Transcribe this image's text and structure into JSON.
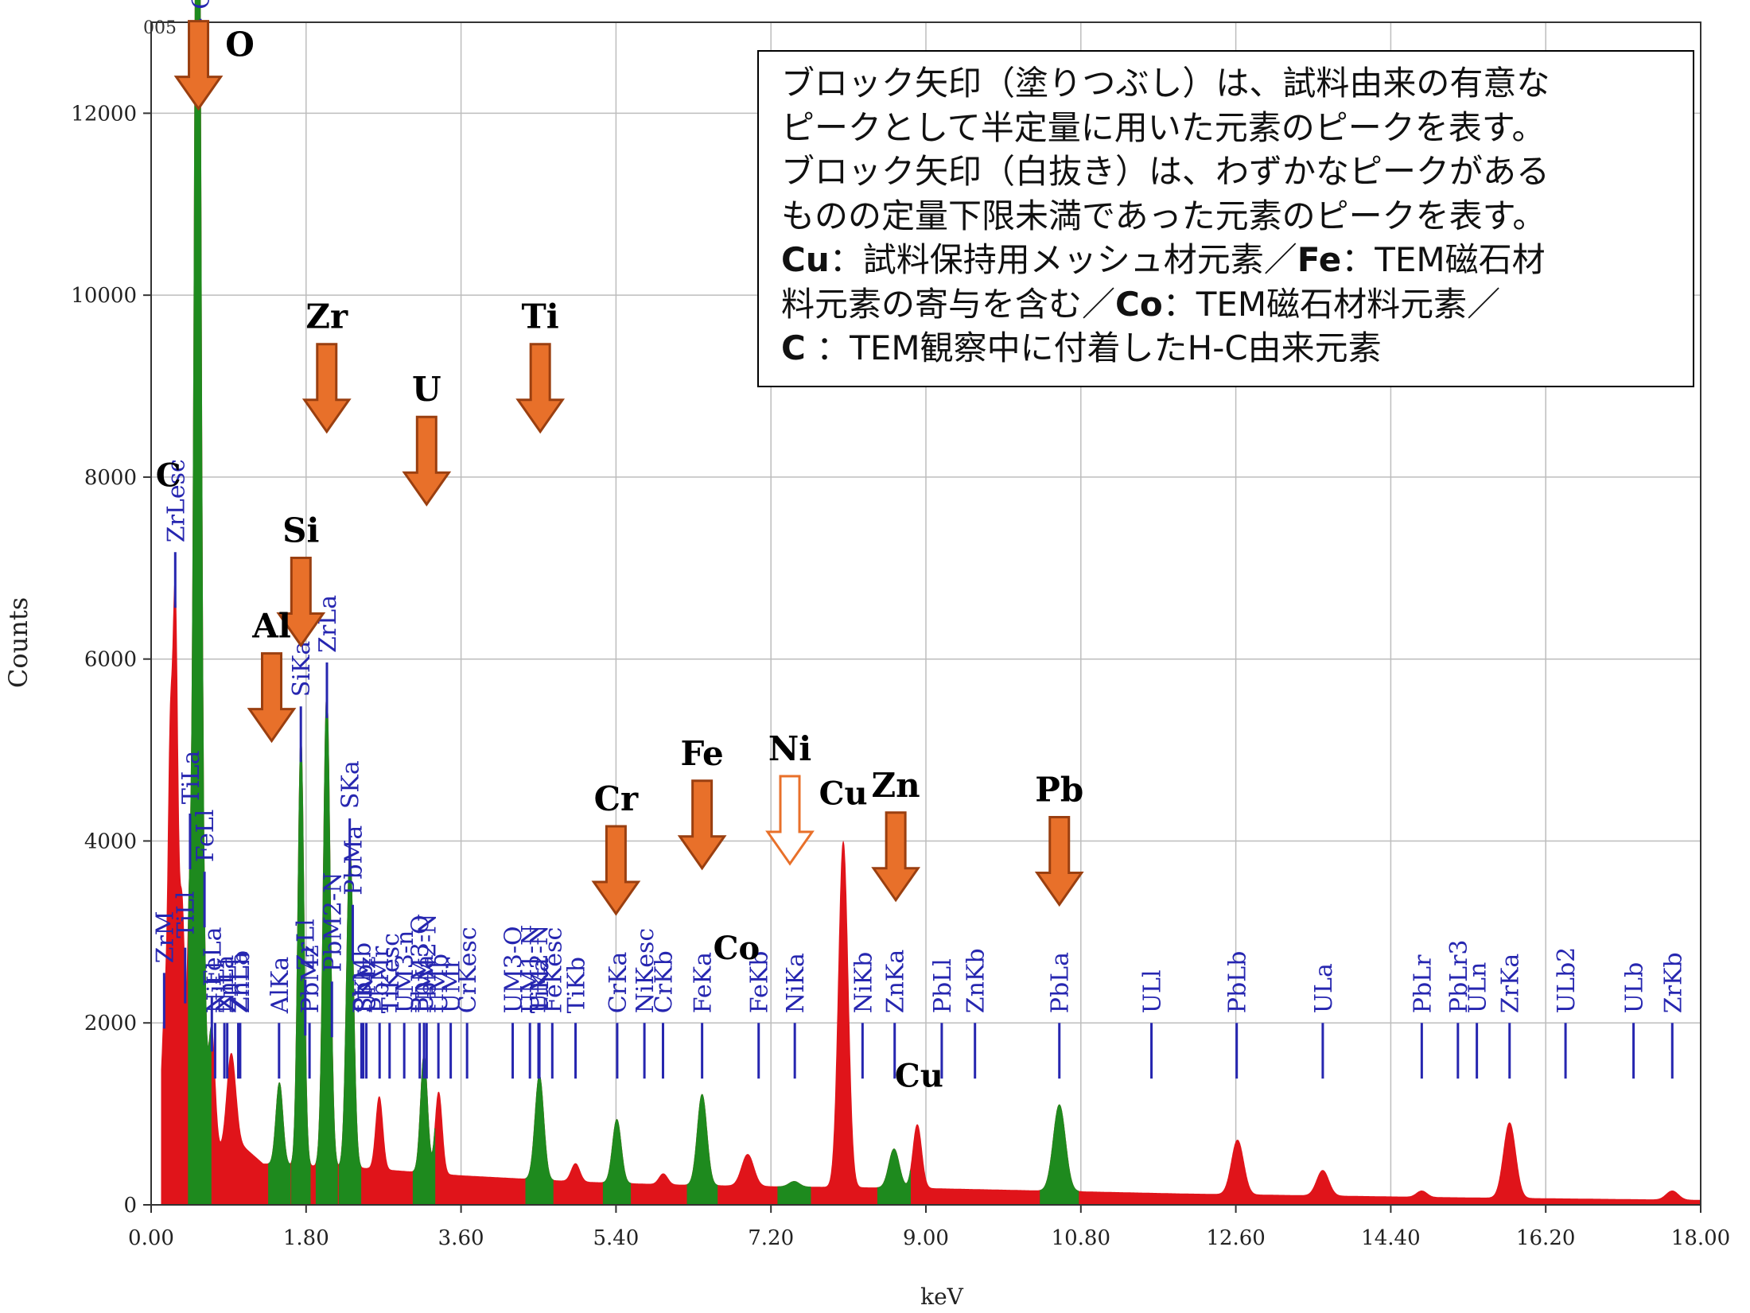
{
  "chart_data": {
    "type": "area",
    "corner_label": "005",
    "xlabel": "keV",
    "ylabel": "Counts",
    "xlim": [
      0,
      18
    ],
    "ylim": [
      0,
      13000
    ],
    "x_ticks": [
      "0.00",
      "1.80",
      "3.60",
      "5.40",
      "7.20",
      "9.00",
      "10.80",
      "12.60",
      "14.40",
      "16.20",
      "18.00"
    ],
    "y_ticks": [
      "0",
      "2000",
      "4000",
      "6000",
      "8000",
      "10000",
      "12000"
    ],
    "grid": true,
    "colors": {
      "spectrum": "#e0141a",
      "identified": "#1e8a1e",
      "arrow": "#e8702a",
      "arrow_stroke": "#9a3f10",
      "line_label": "#2626b0",
      "axis": "#333333"
    },
    "spectrum": {
      "baseline": 400,
      "background_points": [
        [
          0.1,
          1000
        ],
        [
          0.3,
          900
        ],
        [
          0.6,
          500
        ],
        [
          1.0,
          700
        ],
        [
          1.3,
          450
        ],
        [
          2.5,
          400
        ],
        [
          3.6,
          320
        ],
        [
          5.0,
          250
        ],
        [
          6.0,
          220
        ],
        [
          7.2,
          200
        ],
        [
          9.0,
          180
        ],
        [
          12.0,
          120
        ],
        [
          15.0,
          80
        ],
        [
          18.0,
          50
        ]
      ],
      "peaks": [
        {
          "x": 0.16,
          "y": 1200,
          "w": 0.03,
          "group": "red"
        },
        {
          "x": 0.22,
          "y": 3500,
          "w": 0.025,
          "group": "red"
        },
        {
          "x": 0.28,
          "y": 5650,
          "w": 0.03,
          "group": "red"
        },
        {
          "x": 0.36,
          "y": 2400,
          "w": 0.03,
          "group": "red"
        },
        {
          "x": 0.45,
          "y": 2600,
          "w": 0.03,
          "group": "red"
        },
        {
          "x": 0.525,
          "y": 12300,
          "w": 0.03,
          "group": "green"
        },
        {
          "x": 0.56,
          "y": 8000,
          "w": 0.025,
          "group": "green"
        },
        {
          "x": 0.6,
          "y": 2600,
          "w": 0.03,
          "group": "green"
        },
        {
          "x": 0.7,
          "y": 1400,
          "w": 0.04,
          "group": "red"
        },
        {
          "x": 0.93,
          "y": 1000,
          "w": 0.05,
          "group": "red"
        },
        {
          "x": 1.49,
          "y": 900,
          "w": 0.04,
          "group": "green"
        },
        {
          "x": 1.74,
          "y": 4700,
          "w": 0.035,
          "group": "green"
        },
        {
          "x": 2.04,
          "y": 5200,
          "w": 0.04,
          "group": "green"
        },
        {
          "x": 2.31,
          "y": 3500,
          "w": 0.04,
          "group": "green"
        },
        {
          "x": 2.65,
          "y": 800,
          "w": 0.04,
          "group": "red"
        },
        {
          "x": 3.17,
          "y": 1300,
          "w": 0.04,
          "group": "green"
        },
        {
          "x": 3.34,
          "y": 900,
          "w": 0.04,
          "group": "red"
        },
        {
          "x": 4.51,
          "y": 1150,
          "w": 0.05,
          "group": "green"
        },
        {
          "x": 4.93,
          "y": 200,
          "w": 0.05,
          "group": "red"
        },
        {
          "x": 5.41,
          "y": 700,
          "w": 0.05,
          "group": "green"
        },
        {
          "x": 5.95,
          "y": 120,
          "w": 0.05,
          "group": "red"
        },
        {
          "x": 6.4,
          "y": 1000,
          "w": 0.055,
          "group": "green"
        },
        {
          "x": 6.93,
          "y": 350,
          "w": 0.07,
          "group": "red"
        },
        {
          "x": 7.47,
          "y": 60,
          "w": 0.06,
          "group": "green"
        },
        {
          "x": 8.04,
          "y": 3800,
          "w": 0.055,
          "group": "red"
        },
        {
          "x": 8.63,
          "y": 430,
          "w": 0.06,
          "group": "green"
        },
        {
          "x": 8.9,
          "y": 700,
          "w": 0.05,
          "group": "red"
        },
        {
          "x": 10.55,
          "y": 950,
          "w": 0.07,
          "group": "green"
        },
        {
          "x": 12.62,
          "y": 600,
          "w": 0.07,
          "group": "red"
        },
        {
          "x": 13.61,
          "y": 280,
          "w": 0.07,
          "group": "red"
        },
        {
          "x": 14.76,
          "y": 70,
          "w": 0.06,
          "group": "red"
        },
        {
          "x": 15.78,
          "y": 830,
          "w": 0.07,
          "group": "red"
        },
        {
          "x": 17.67,
          "y": 100,
          "w": 0.07,
          "group": "red"
        }
      ]
    },
    "line_markers": [
      {
        "label": "ZrM",
        "x": 0.151
      },
      {
        "label": "ZrLesc",
        "x": 0.28
      },
      {
        "label": "OKa",
        "x": 0.525
      },
      {
        "label": "NiLl",
        "x": 0.743
      },
      {
        "label": "FeLa",
        "x": 0.705
      },
      {
        "label": "FeLl",
        "x": 0.62
      },
      {
        "label": "CrLa",
        "x": 0.573
      },
      {
        "label": "ZnLl",
        "x": 0.884
      },
      {
        "label": "ZnLa",
        "x": 1.012
      },
      {
        "label": "ZnLb",
        "x": 1.034
      },
      {
        "label": "NiLa",
        "x": 0.851
      },
      {
        "label": "TiLa",
        "x": 0.452
      },
      {
        "label": "TiLl",
        "x": 0.395
      },
      {
        "label": "AlKa",
        "x": 1.486
      },
      {
        "label": "SiKa",
        "x": 1.739
      },
      {
        "label": "ZrLl",
        "x": 1.79
      },
      {
        "label": "PbMz",
        "x": 1.84
      },
      {
        "label": "ZrLa",
        "x": 2.042
      },
      {
        "label": "PbMb",
        "x": 2.443
      },
      {
        "label": "PbMa",
        "x": 2.342
      },
      {
        "label": "PbM2-N",
        "x": 2.1
      },
      {
        "label": "SKb",
        "x": 2.464
      },
      {
        "label": "SKa",
        "x": 2.307
      },
      {
        "label": "UMz",
        "x": 2.5
      },
      {
        "label": "PbMr",
        "x": 2.654
      },
      {
        "label": "TiKesc",
        "x": 2.77
      },
      {
        "label": "UMa",
        "x": 3.17
      },
      {
        "label": "UMb",
        "x": 3.337
      },
      {
        "label": "UM3-n",
        "x": 2.94
      },
      {
        "label": "PbM3-O",
        "x": 3.12
      },
      {
        "label": "PbM2-N",
        "x": 3.2
      },
      {
        "label": "UMr",
        "x": 3.48
      },
      {
        "label": "CrKesc",
        "x": 3.67
      },
      {
        "label": "UM3-O",
        "x": 4.2
      },
      {
        "label": "UM1-N",
        "x": 4.4
      },
      {
        "label": "UM2-N",
        "x": 4.5
      },
      {
        "label": "TiKa",
        "x": 4.51
      },
      {
        "label": "FeKesc",
        "x": 4.66
      },
      {
        "label": "TiKb",
        "x": 4.93
      },
      {
        "label": "CrKa",
        "x": 5.414
      },
      {
        "label": "NiKesc",
        "x": 5.73
      },
      {
        "label": "CrKb",
        "x": 5.946
      },
      {
        "label": "FeKa",
        "x": 6.4
      },
      {
        "label": "FeKb",
        "x": 7.057
      },
      {
        "label": "NiKa",
        "x": 7.477
      },
      {
        "label": "NiKb",
        "x": 8.264
      },
      {
        "label": "ZnKa",
        "x": 8.637
      },
      {
        "label": "PbLl",
        "x": 9.184
      },
      {
        "label": "ZnKb",
        "x": 9.57
      },
      {
        "label": "PbLa",
        "x": 10.55
      },
      {
        "label": "ULl",
        "x": 11.62
      },
      {
        "label": "PbLb",
        "x": 12.61
      },
      {
        "label": "ULa",
        "x": 13.61
      },
      {
        "label": "PbLr",
        "x": 14.76
      },
      {
        "label": "PbLr3",
        "x": 15.18
      },
      {
        "label": "ULn",
        "x": 15.4
      },
      {
        "label": "ZrKa",
        "x": 15.78
      },
      {
        "label": "ULb2",
        "x": 16.43
      },
      {
        "label": "ULb",
        "x": 17.22
      },
      {
        "label": "ZrKb",
        "x": 17.67
      }
    ],
    "element_arrows": [
      {
        "label": "O",
        "x": 0.55,
        "tip": 12050,
        "style": "filled"
      },
      {
        "label": "C",
        "x": 0.2,
        "tip": null,
        "style": "none",
        "label_y": 7900
      },
      {
        "label": "Zr",
        "x": 2.04,
        "tip": 8500,
        "style": "filled"
      },
      {
        "label": "Si",
        "x": 1.74,
        "tip": 6150,
        "style": "filled"
      },
      {
        "label": "Al",
        "x": 1.4,
        "tip": 5100,
        "style": "filled"
      },
      {
        "label": "U",
        "x": 3.2,
        "tip": 7700,
        "style": "filled"
      },
      {
        "label": "Ti",
        "x": 4.52,
        "tip": 8500,
        "style": "filled"
      },
      {
        "label": "Cr",
        "x": 5.4,
        "tip": 3200,
        "style": "filled"
      },
      {
        "label": "Fe",
        "x": 6.4,
        "tip": 3700,
        "style": "filled"
      },
      {
        "label": "Ni",
        "x": 7.42,
        "tip": 3750,
        "style": "outline"
      },
      {
        "label": "Zn",
        "x": 8.65,
        "tip": 3350,
        "style": "filled"
      },
      {
        "label": "Pb",
        "x": 10.55,
        "tip": 3300,
        "style": "filled"
      }
    ],
    "plain_labels": [
      {
        "label": "Cu",
        "x": 8.04,
        "y": 4400
      },
      {
        "label": "Co",
        "x": 6.8,
        "y": 2700
      },
      {
        "label": "Cu",
        "x": 8.92,
        "y": 1300
      }
    ]
  },
  "legend": {
    "line1": "ブロック矢印（塗りつぶし）は、試料由来の有意な",
    "line2": "ピークとして半定量に用いた元素のピークを表す。",
    "line3": "ブロック矢印（白抜き）は、わずかなピークがある",
    "line4": "ものの定量下限未満であった元素のピークを表す。",
    "line5_b1": "Cu",
    "line5_t1": "：試料保持用メッシュ材元素／",
    "line5_b2": "Fe",
    "line5_t2": "：TEM磁石材",
    "line6_t1": "料元素の寄与を含む／",
    "line6_b1": "Co",
    "line6_t2": "：TEM磁石材料元素／",
    "line7_b1": "C",
    "line7_t1": " ：TEM観察中に付着したH-C由来元素"
  }
}
